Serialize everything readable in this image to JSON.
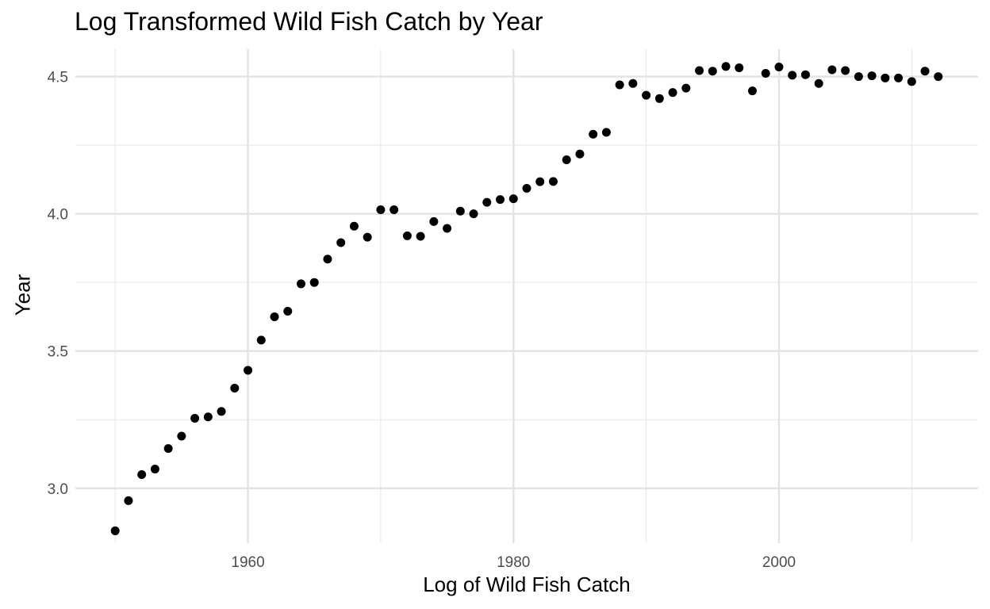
{
  "chart_data": {
    "type": "scatter",
    "title": "Log Transformed Wild Fish Catch by Year",
    "xlabel": "Log of Wild Fish Catch",
    "ylabel": "Year",
    "xlim": [
      1947,
      2015
    ],
    "ylim": [
      2.8,
      4.6
    ],
    "x_ticks": [
      1960,
      1980,
      2000
    ],
    "y_ticks": [
      3.0,
      3.5,
      4.0,
      4.5
    ],
    "x_tick_labels": [
      "1960",
      "1980",
      "2000"
    ],
    "y_tick_labels": [
      "3.0",
      "3.5",
      "4.0",
      "4.5"
    ],
    "x_minor_ticks": [
      1950,
      1970,
      1990,
      2010
    ],
    "y_minor_ticks": [
      3.25,
      3.75,
      4.25
    ],
    "grid": true,
    "legend": "none",
    "point_color": "#000000",
    "points": [
      [
        1950,
        2.845
      ],
      [
        1951,
        2.955
      ],
      [
        1952,
        3.05
      ],
      [
        1953,
        3.07
      ],
      [
        1954,
        3.145
      ],
      [
        1955,
        3.19
      ],
      [
        1956,
        3.255
      ],
      [
        1957,
        3.26
      ],
      [
        1958,
        3.28
      ],
      [
        1959,
        3.365
      ],
      [
        1960,
        3.43
      ],
      [
        1961,
        3.54
      ],
      [
        1962,
        3.625
      ],
      [
        1963,
        3.645
      ],
      [
        1964,
        3.745
      ],
      [
        1965,
        3.75
      ],
      [
        1966,
        3.835
      ],
      [
        1967,
        3.895
      ],
      [
        1968,
        3.955
      ],
      [
        1969,
        3.915
      ],
      [
        1970,
        4.015
      ],
      [
        1971,
        4.015
      ],
      [
        1972,
        3.92
      ],
      [
        1973,
        3.918
      ],
      [
        1974,
        3.972
      ],
      [
        1975,
        3.947
      ],
      [
        1976,
        4.01
      ],
      [
        1977,
        4.0
      ],
      [
        1978,
        4.042
      ],
      [
        1979,
        4.052
      ],
      [
        1980,
        4.055
      ],
      [
        1981,
        4.093
      ],
      [
        1982,
        4.117
      ],
      [
        1983,
        4.118
      ],
      [
        1984,
        4.197
      ],
      [
        1985,
        4.218
      ],
      [
        1986,
        4.29
      ],
      [
        1987,
        4.297
      ],
      [
        1988,
        4.47
      ],
      [
        1989,
        4.475
      ],
      [
        1990,
        4.432
      ],
      [
        1991,
        4.42
      ],
      [
        1992,
        4.442
      ],
      [
        1993,
        4.458
      ],
      [
        1994,
        4.522
      ],
      [
        1995,
        4.52
      ],
      [
        1996,
        4.537
      ],
      [
        1997,
        4.532
      ],
      [
        1998,
        4.448
      ],
      [
        1999,
        4.512
      ],
      [
        2000,
        4.535
      ],
      [
        2001,
        4.505
      ],
      [
        2002,
        4.507
      ],
      [
        2003,
        4.475
      ],
      [
        2004,
        4.525
      ],
      [
        2005,
        4.522
      ],
      [
        2006,
        4.5
      ],
      [
        2007,
        4.503
      ],
      [
        2008,
        4.495
      ],
      [
        2009,
        4.495
      ],
      [
        2010,
        4.482
      ],
      [
        2011,
        4.52
      ],
      [
        2012,
        4.5
      ]
    ]
  }
}
